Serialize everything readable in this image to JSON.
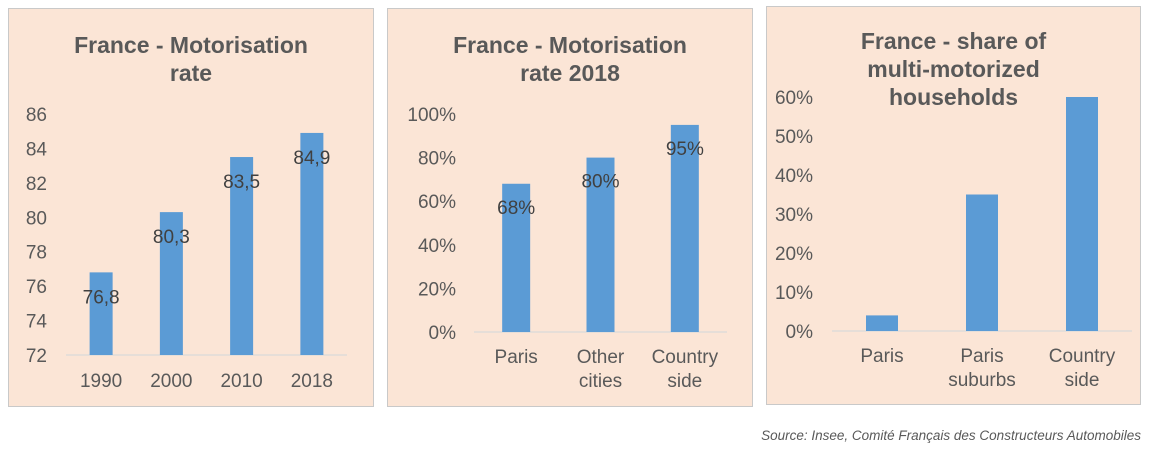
{
  "chart_data": [
    {
      "type": "bar",
      "title": "France - Motorisation rate",
      "categories": [
        "1990",
        "2000",
        "2010",
        "2018"
      ],
      "values": [
        76.8,
        80.3,
        83.5,
        84.9
      ],
      "data_labels": [
        "76,8",
        "80,3",
        "83,5",
        "84,9"
      ],
      "ylim": [
        72,
        86
      ],
      "yticks": [
        "72",
        "74",
        "76",
        "78",
        "80",
        "82",
        "84",
        "86"
      ],
      "bar_color": "#5b9bd5",
      "grid": false
    },
    {
      "type": "bar",
      "title": "France - Motorisation rate 2018",
      "categories": [
        "Paris",
        "Other cities",
        "Country side"
      ],
      "values": [
        0.68,
        0.8,
        0.95
      ],
      "data_labels": [
        "68%",
        "80%",
        "95%"
      ],
      "ylim": [
        0,
        1.0
      ],
      "yticks": [
        "0%",
        "20%",
        "40%",
        "60%",
        "80%",
        "100%"
      ],
      "bar_color": "#5b9bd5",
      "grid": false
    },
    {
      "type": "bar",
      "title": "France - share of multi-motorized households",
      "categories": [
        "Paris",
        "Paris suburbs",
        "Country side"
      ],
      "values": [
        0.04,
        0.35,
        0.6
      ],
      "ylim": [
        0,
        0.6
      ],
      "yticks": [
        "0%",
        "10%",
        "20%",
        "30%",
        "40%",
        "50%",
        "60%"
      ],
      "bar_color": "#5b9bd5",
      "grid": false
    }
  ],
  "titles": {
    "chart1_line1": "France - Motorisation",
    "chart1_line2": "rate",
    "chart2_line1": "France - Motorisation",
    "chart2_line2": "rate 2018",
    "chart3_line1": "France - share of",
    "chart3_line2": "multi-motorized",
    "chart3_line3": "households"
  },
  "category_lines": {
    "chart2": [
      [
        "Paris"
      ],
      [
        "Other",
        "cities"
      ],
      [
        "Country",
        "side"
      ]
    ],
    "chart3": [
      [
        "Paris"
      ],
      [
        "Paris",
        "suburbs"
      ],
      [
        "Country",
        "side"
      ]
    ]
  },
  "source": "Source: Insee, Comité Français des Constructeurs Automobiles",
  "colors": {
    "panel_background": "#fbe5d6",
    "bar": "#5b9bd5",
    "text": "#595959",
    "axis": "#d9d9d9"
  }
}
